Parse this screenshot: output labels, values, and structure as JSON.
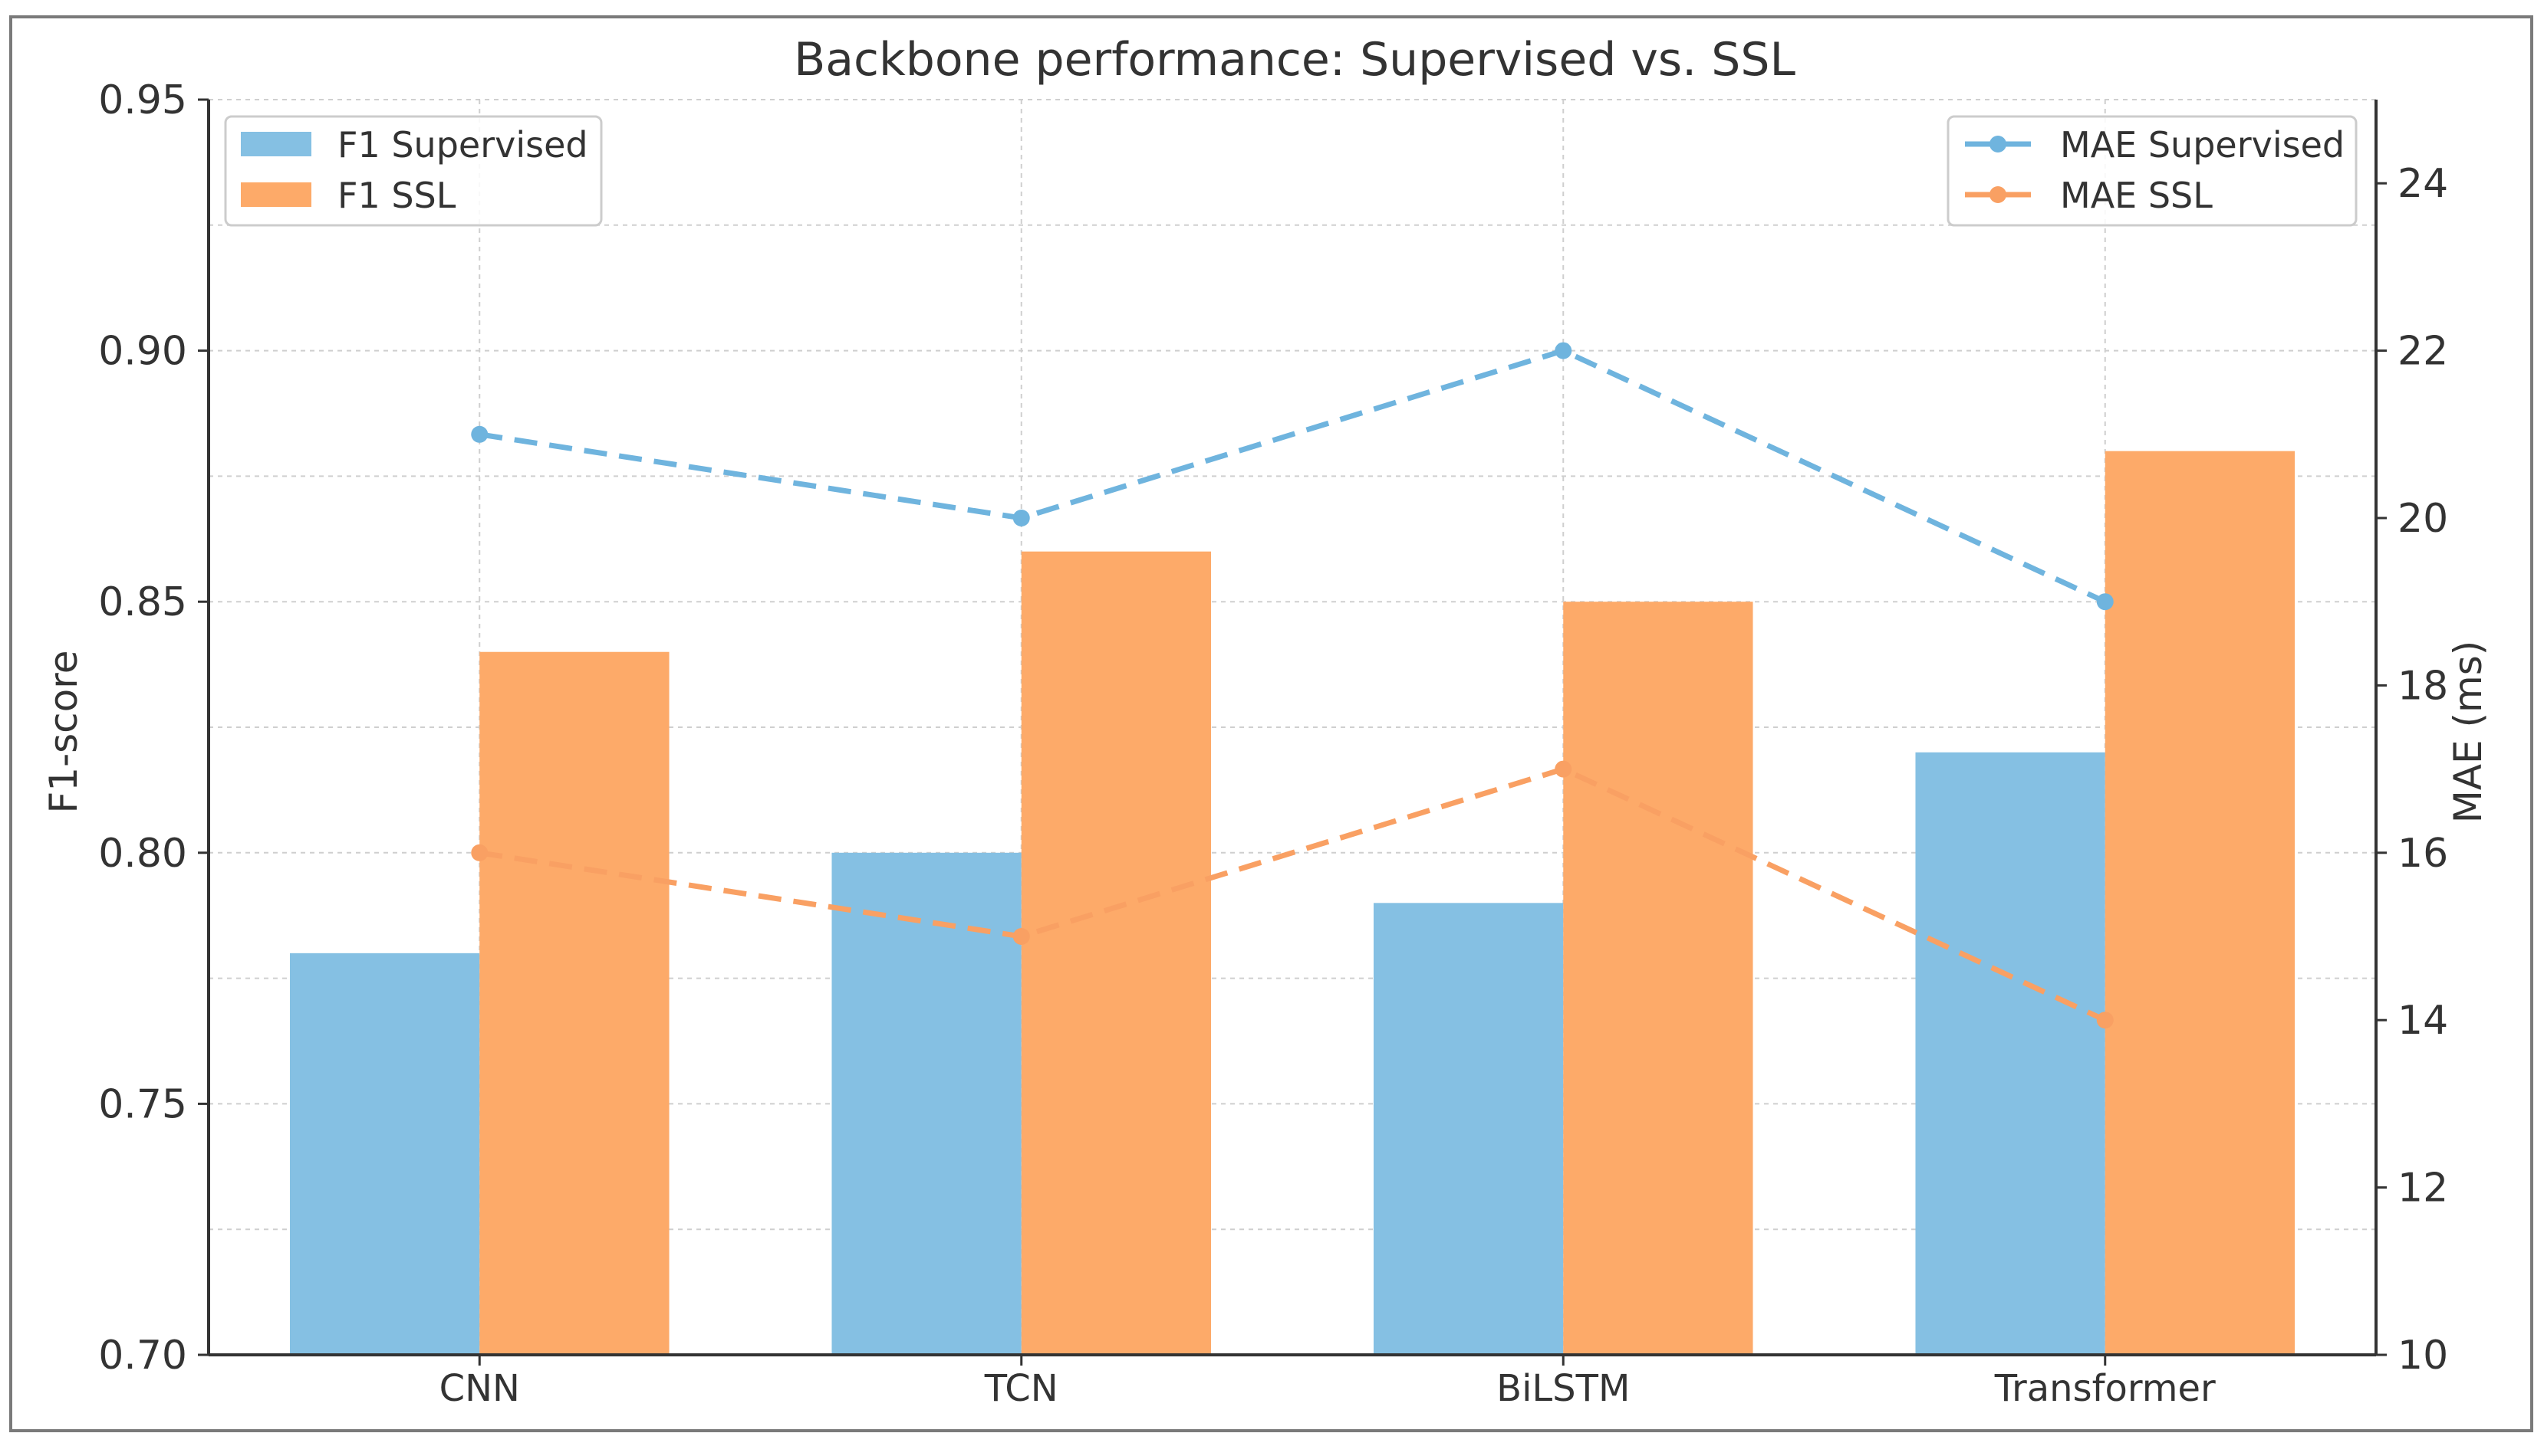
{
  "chart_data": {
    "type": "bar",
    "title": "Backbone performance: Supervised vs. SSL",
    "categories": [
      "CNN",
      "TCN",
      "BiLSTM",
      "Transformer"
    ],
    "xlabel": "",
    "ylabel": "F1-score",
    "ylim": [
      0.7,
      0.95
    ],
    "yticks": [
      "0.70",
      "0.75",
      "0.80",
      "0.85",
      "0.90",
      "0.95"
    ],
    "y2label": "MAE (ms)",
    "y2lim": [
      10,
      25
    ],
    "y2ticks": [
      "10",
      "12",
      "14",
      "16",
      "18",
      "20",
      "22",
      "24"
    ],
    "grid": true,
    "bar_series": [
      {
        "name": "F1 Supervised",
        "color": "#85c0e3",
        "values": [
          0.78,
          0.8,
          0.79,
          0.82
        ]
      },
      {
        "name": "F1 SSL",
        "color": "#fdaa69",
        "values": [
          0.84,
          0.86,
          0.85,
          0.88
        ]
      }
    ],
    "line_series": [
      {
        "name": "MAE Supervised",
        "color": "#6fb4de",
        "style": "dashed",
        "marker": "circle",
        "values": [
          21,
          20,
          22,
          19
        ]
      },
      {
        "name": "MAE SSL",
        "color": "#f9a063",
        "style": "dashed",
        "marker": "circle",
        "values": [
          16,
          15,
          17,
          14
        ]
      }
    ],
    "legend_bars": "top-left",
    "legend_lines": "top-right"
  }
}
